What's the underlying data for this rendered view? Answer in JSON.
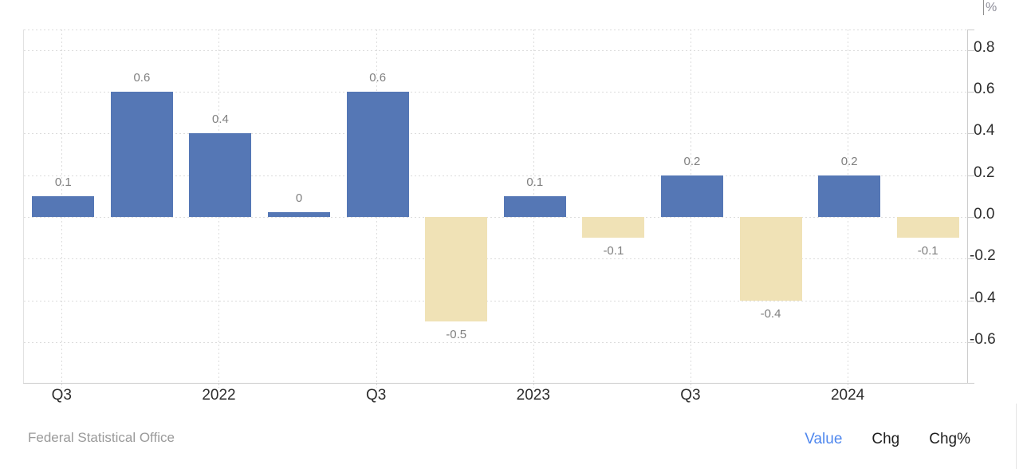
{
  "chart_data": {
    "type": "bar",
    "title": "",
    "ylabel_unit": "%",
    "ylim": [
      -0.83,
      0.9
    ],
    "grid": "dotted",
    "legend_position": "none",
    "y_tick_labels": [
      "0.8",
      "0.6",
      "0.4",
      "0.2",
      "0.0",
      "-0.2",
      "-0.4",
      "-0.6"
    ],
    "y_tick_values": [
      0.8,
      0.6,
      0.4,
      0.2,
      0.0,
      -0.2,
      -0.4,
      -0.6
    ],
    "x_tick_labels": [
      "Q3",
      "2022",
      "Q3",
      "2023",
      "Q3",
      "2024"
    ],
    "x_tick_slots": [
      0,
      2,
      4,
      6,
      8,
      10
    ],
    "values": [
      0.1,
      0.6,
      0.4,
      0,
      0.6,
      -0.5,
      0.1,
      -0.1,
      0.2,
      -0.4,
      0.2,
      -0.1
    ],
    "data_labels": [
      "0.1",
      "0.6",
      "0.4",
      "0",
      "0.6",
      "-0.5",
      "0.1",
      "-0.1",
      "0.2",
      "-0.4",
      "0.2",
      "-0.1"
    ],
    "colors": {
      "positive_bar": "#5577b5",
      "negative_bar": "#f0e2b6",
      "grid": "#dcdcdc",
      "axis": "#cccccc",
      "data_label": "#7f7f7f",
      "tick_label": "#2e2e2e",
      "unit_label": "#8d8d99"
    }
  },
  "footer": {
    "source": "Federal Statistical Office",
    "tabs": [
      {
        "label": "Value",
        "active": true
      },
      {
        "label": "Chg",
        "active": false
      },
      {
        "label": "Chg%",
        "active": false
      }
    ],
    "active_tab_color": "#4f87ee",
    "tab_color": "#1f1f1f",
    "source_color": "#9a9a9a"
  }
}
